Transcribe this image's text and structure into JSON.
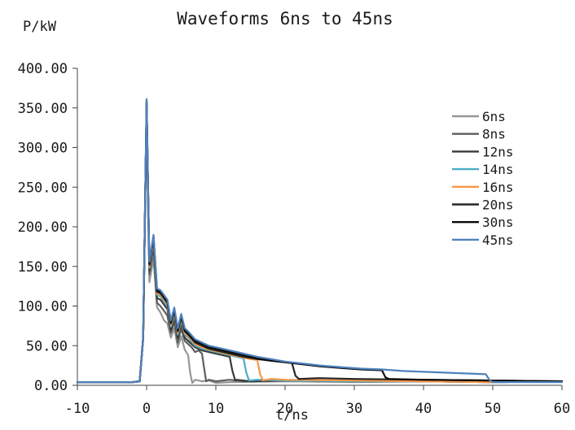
{
  "chart_data": {
    "type": "line",
    "title": "Waveforms 6ns to 45ns",
    "xlabel": "t/ns",
    "ylabel": "P/kW",
    "xlim": [
      -10,
      60
    ],
    "ylim": [
      0,
      400
    ],
    "xticks": [
      "-10",
      "0",
      "10",
      "20",
      "30",
      "40",
      "50",
      "60"
    ],
    "yticks": [
      "0.00",
      "50.00",
      "100.00",
      "150.00",
      "200.00",
      "250.00",
      "300.00",
      "350.00",
      "400.00"
    ],
    "legend_position": "right",
    "grid": false,
    "series": [
      {
        "name": "6ns",
        "color": "#969696",
        "x": [
          -10,
          -2,
          -1,
          -0.5,
          -0.1,
          0,
          0.4,
          1,
          1.5,
          2,
          2.5,
          3,
          3.5,
          4,
          4.5,
          5,
          5.5,
          6,
          6.3,
          6.6,
          7,
          8,
          9,
          10,
          12,
          20,
          30,
          40,
          50,
          60
        ],
        "y": [
          4,
          4,
          5,
          60,
          300,
          345,
          130,
          160,
          98,
          92,
          82,
          78,
          60,
          72,
          48,
          62,
          45,
          38,
          15,
          3,
          7,
          5,
          6,
          3,
          4,
          5,
          4,
          5,
          4,
          5
        ]
      },
      {
        "name": "8ns",
        "color": "#5e5e5e",
        "x": [
          -10,
          -2,
          -1,
          -0.5,
          -0.1,
          0,
          0.4,
          1,
          1.5,
          2,
          2.5,
          3,
          3.5,
          4,
          4.5,
          5,
          5.5,
          6,
          6.5,
          7,
          7.5,
          8,
          8.3,
          8.6,
          9,
          10,
          12,
          14,
          20,
          30,
          40,
          50,
          60
        ],
        "y": [
          4,
          4,
          5,
          60,
          300,
          352,
          140,
          172,
          104,
          100,
          94,
          88,
          66,
          80,
          54,
          72,
          56,
          52,
          48,
          42,
          44,
          40,
          22,
          5,
          7,
          5,
          7,
          5,
          6,
          5,
          5,
          4,
          5
        ]
      },
      {
        "name": "12ns",
        "color": "#3a3a3a",
        "x": [
          -10,
          -2,
          -1,
          -0.5,
          -0.1,
          0,
          0.4,
          1,
          1.5,
          2,
          2.5,
          3,
          3.5,
          4,
          4.5,
          5,
          5.5,
          6,
          7,
          8,
          9,
          10,
          11,
          12,
          12.4,
          12.8,
          13,
          15,
          20,
          30,
          40,
          50,
          60
        ],
        "y": [
          4,
          4,
          5,
          60,
          300,
          355,
          145,
          178,
          110,
          108,
          102,
          96,
          70,
          86,
          60,
          78,
          60,
          56,
          48,
          44,
          42,
          40,
          38,
          36,
          18,
          6,
          7,
          5,
          6,
          5,
          5,
          4,
          5
        ]
      },
      {
        "name": "14ns",
        "color": "#4bacc6",
        "x": [
          -10,
          -2,
          -1,
          -0.5,
          -0.1,
          0,
          0.4,
          1,
          1.5,
          2,
          2.5,
          3,
          3.5,
          4,
          4.5,
          5,
          5.5,
          6,
          7,
          8,
          9,
          10,
          11,
          12,
          13,
          14,
          14.4,
          14.8,
          16,
          20,
          30,
          40,
          50,
          60
        ],
        "y": [
          4,
          4,
          5,
          60,
          300,
          357,
          148,
          182,
          114,
          112,
          106,
          100,
          74,
          90,
          64,
          82,
          64,
          60,
          50,
          46,
          44,
          42,
          40,
          38,
          36,
          34,
          16,
          6,
          7,
          6,
          5,
          5,
          4,
          5
        ]
      },
      {
        "name": "16ns",
        "color": "#f79646",
        "x": [
          -10,
          -2,
          -1,
          -0.5,
          -0.1,
          0,
          0.4,
          1,
          1.5,
          2,
          2.5,
          3,
          3.5,
          4,
          4.5,
          5,
          5.5,
          6,
          7,
          8,
          9,
          10,
          11,
          12,
          13,
          14,
          15,
          16,
          16.4,
          16.8,
          18,
          20,
          30,
          40,
          50,
          60
        ],
        "y": [
          4,
          4,
          5,
          60,
          300,
          357,
          150,
          184,
          116,
          114,
          108,
          102,
          76,
          92,
          66,
          84,
          66,
          62,
          52,
          48,
          45,
          43,
          41,
          39,
          37,
          35,
          33,
          32,
          14,
          6,
          8,
          7,
          6,
          5,
          4,
          5
        ]
      },
      {
        "name": "20ns",
        "color": "#262626",
        "x": [
          -10,
          -2,
          -1,
          -0.5,
          -0.1,
          0,
          0.4,
          1,
          1.5,
          2,
          2.5,
          3,
          3.5,
          4,
          4.5,
          5,
          5.5,
          6,
          7,
          8,
          9,
          10,
          12,
          14,
          16,
          18,
          20,
          21,
          21.5,
          22,
          25,
          30,
          40,
          50,
          60
        ],
        "y": [
          4,
          4,
          5,
          60,
          300,
          358,
          152,
          186,
          118,
          116,
          110,
          104,
          78,
          94,
          68,
          86,
          68,
          64,
          54,
          50,
          46,
          44,
          40,
          36,
          33,
          31,
          29,
          28,
          12,
          8,
          9,
          8,
          7,
          6,
          5
        ]
      },
      {
        "name": "30ns",
        "color": "#0a0a0a",
        "x": [
          -10,
          -2,
          -1,
          -0.5,
          -0.1,
          0,
          0.4,
          1,
          1.5,
          2,
          2.5,
          3,
          3.5,
          4,
          4.5,
          5,
          5.5,
          6,
          7,
          8,
          9,
          10,
          12,
          14,
          16,
          18,
          20,
          22,
          25,
          28,
          31,
          34,
          34.5,
          35,
          40,
          50,
          60
        ],
        "y": [
          4,
          4,
          5,
          60,
          300,
          360,
          154,
          188,
          120,
          118,
          112,
          106,
          80,
          96,
          70,
          88,
          70,
          66,
          56,
          52,
          48,
          46,
          42,
          38,
          34,
          31,
          29,
          27,
          24,
          22,
          20,
          19,
          10,
          8,
          7,
          6,
          5
        ]
      },
      {
        "name": "45ns",
        "color": "#4f81bd",
        "x": [
          -10,
          -2,
          -1,
          -0.5,
          -0.1,
          0,
          0.4,
          1,
          1.5,
          2,
          2.5,
          3,
          3.5,
          4,
          4.5,
          5,
          5.5,
          6,
          7,
          8,
          9,
          10,
          12,
          14,
          16,
          18,
          20,
          22,
          25,
          28,
          31,
          34,
          37,
          40,
          43,
          46,
          49,
          49.5,
          50,
          55,
          60
        ],
        "y": [
          4,
          4,
          5,
          60,
          300,
          361,
          156,
          190,
          122,
          120,
          114,
          108,
          82,
          98,
          72,
          90,
          72,
          68,
          58,
          54,
          50,
          48,
          44,
          40,
          36,
          33,
          30,
          28,
          25,
          23,
          21,
          20,
          18,
          17,
          16,
          15,
          14,
          7,
          4,
          4,
          4
        ]
      }
    ]
  }
}
